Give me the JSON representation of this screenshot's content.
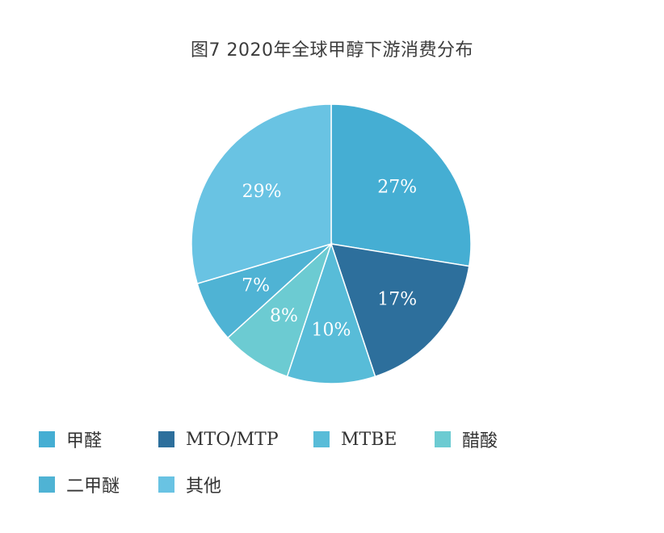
{
  "chart_data": {
    "type": "pie",
    "title": "图7  2020年全球甲醇下游消费分布",
    "categories": [
      "甲醛",
      "MTO/MTP",
      "MTBE",
      "醋酸",
      "二甲醚",
      "其他"
    ],
    "values": [
      27,
      17,
      10,
      8,
      7,
      29
    ],
    "value_labels": [
      "27%",
      "17%",
      "10%",
      "8%",
      "7%",
      "29%"
    ],
    "colors": [
      "#45aed3",
      "#2d6f9c",
      "#58bcd8",
      "#6ccbd2",
      "#4fb3d4",
      "#69c3e3"
    ],
    "legend_position": "bottom",
    "start_angle_deg": 0,
    "direction": "clockwise"
  }
}
